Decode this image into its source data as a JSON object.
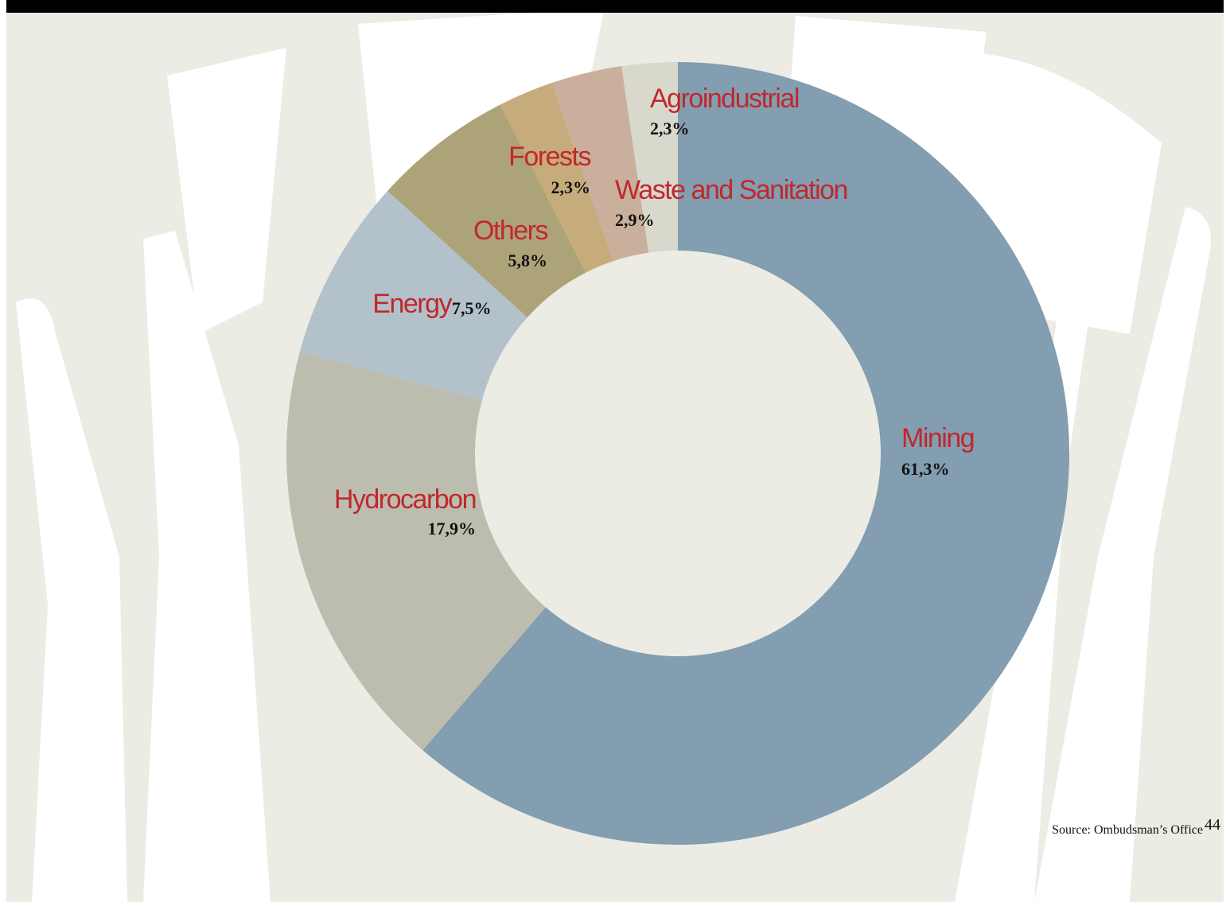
{
  "chart_data": {
    "type": "donut",
    "categories": [
      "Mining",
      "Hydrocarbon",
      "Energy",
      "Others",
      "Forests",
      "Waste and Sanitation",
      "Agroindustrial"
    ],
    "values": [
      61.3,
      17.9,
      7.5,
      5.8,
      2.3,
      2.9,
      2.3
    ],
    "value_labels": [
      "61,3%",
      "17,9%",
      "7,5%",
      "5,8%",
      "2,3%",
      "2,9%",
      "2,3%"
    ],
    "colors": [
      "#829eb0",
      "#bdbdaf",
      "#b2c1ca",
      "#ada379",
      "#c6ab7b",
      "#c9af9c",
      "#d9d8cc"
    ],
    "source": "Source: Ombudsman’s Office",
    "page_number": "44"
  }
}
